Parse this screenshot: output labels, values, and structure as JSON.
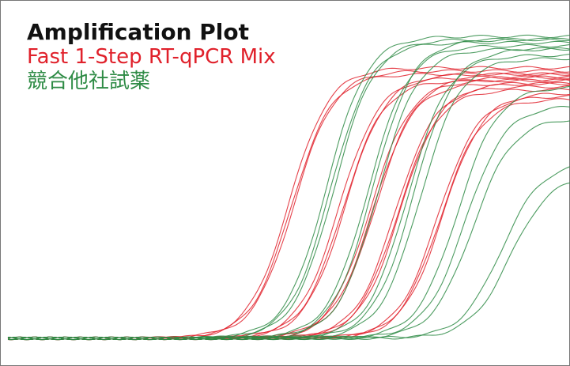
{
  "chart_data": {
    "type": "line",
    "title": "Amplification Plot",
    "xlabel": "",
    "ylabel": "",
    "xlim": [
      0,
      45
    ],
    "ylim": [
      0,
      1
    ],
    "grid": false,
    "legend_placement": "top-left",
    "legend": [
      {
        "label": "Fast 1-Step RT-qPCR Mix",
        "color": "#e0212b"
      },
      {
        "label": "競合他社試薬",
        "color": "#2e8b45"
      }
    ],
    "groups": [
      {
        "legend_index": 0,
        "color": "#e0212b",
        "curves": [
          {
            "ct": 22.5,
            "plateau": 0.86
          },
          {
            "ct": 22.7,
            "plateau": 0.84
          },
          {
            "ct": 22.9,
            "plateau": 0.85
          },
          {
            "ct": 26.5,
            "plateau": 0.83
          },
          {
            "ct": 26.8,
            "plateau": 0.82
          },
          {
            "ct": 27.0,
            "plateau": 0.84
          },
          {
            "ct": 29.0,
            "plateau": 0.82
          },
          {
            "ct": 29.2,
            "plateau": 0.81
          },
          {
            "ct": 29.4,
            "plateau": 0.83
          },
          {
            "ct": 31.0,
            "plateau": 0.8
          },
          {
            "ct": 31.2,
            "plateau": 0.79
          },
          {
            "ct": 31.4,
            "plateau": 0.81
          },
          {
            "ct": 34.4,
            "plateau": 0.77
          },
          {
            "ct": 34.6,
            "plateau": 0.76
          },
          {
            "ct": 34.8,
            "plateau": 0.78
          }
        ]
      },
      {
        "legend_index": 1,
        "color": "#2e8b45",
        "curves": [
          {
            "ct": 25.5,
            "plateau": 0.96
          },
          {
            "ct": 25.8,
            "plateau": 0.94
          },
          {
            "ct": 26.1,
            "plateau": 0.95
          },
          {
            "ct": 28.8,
            "plateau": 0.93
          },
          {
            "ct": 29.2,
            "plateau": 0.95
          },
          {
            "ct": 29.6,
            "plateau": 0.92
          },
          {
            "ct": 32.0,
            "plateau": 0.9
          },
          {
            "ct": 32.5,
            "plateau": 0.92
          },
          {
            "ct": 33.0,
            "plateau": 0.89
          },
          {
            "ct": 36.0,
            "plateau": 0.8
          },
          {
            "ct": 36.6,
            "plateau": 0.74
          },
          {
            "ct": 37.2,
            "plateau": 0.7
          },
          {
            "ct": 39.5,
            "plateau": 0.56
          },
          {
            "ct": 40.2,
            "plateau": 0.52
          }
        ]
      }
    ]
  }
}
